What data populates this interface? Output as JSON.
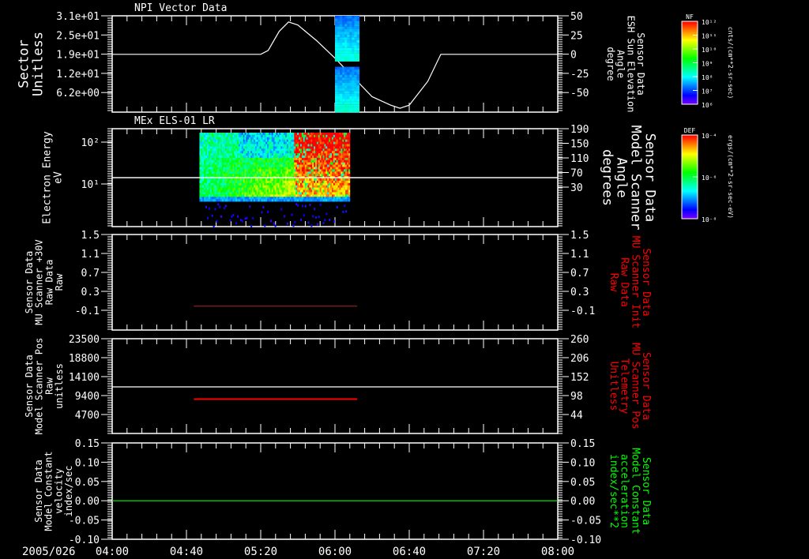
{
  "date_label": "2005/026",
  "time_axis": {
    "start": "04:00",
    "end": "08:00",
    "labels": [
      "04:00",
      "04:40",
      "05:20",
      "06:00",
      "06:40",
      "07:20",
      "08:00"
    ]
  },
  "colors": {
    "axis": "#ffffff",
    "red": "#ff0000",
    "dark_red": "#8b2020",
    "green": "#00ff00",
    "background": "#000000"
  },
  "colorbars": [
    {
      "title": "NF",
      "tick_labels": [
        "10¹²",
        "10¹¹",
        "10¹⁰",
        "10⁹",
        "10⁸",
        "10⁷",
        "10⁶"
      ],
      "units": "cnts/(cm**2-sr-sec)"
    },
    {
      "title": "DEF",
      "tick_labels": [
        "10⁻⁴",
        "10⁻⁶",
        "10⁻⁸"
      ],
      "units": "ergs/(cm**2-sr-sec-eV)"
    }
  ],
  "chart_data": [
    {
      "type": "line",
      "title": "NPI Vector Data",
      "left_axis": {
        "label": [
          "Sector",
          "Unitless"
        ],
        "ticks": [
          "3.1e+01",
          "2.5e+01",
          "1.9e+01",
          "1.2e+01",
          "6.2e+00"
        ],
        "ylim": [
          0,
          31
        ]
      },
      "right_axis": {
        "label": [
          "Sensor Data",
          "ESH Sun Elevation",
          "Angle",
          "degree"
        ],
        "ticks": [
          "50",
          "25",
          "0",
          "-25",
          "-50"
        ],
        "ylim": [
          -75,
          50
        ]
      },
      "series": [
        {
          "name": "Sun Elevation Angle",
          "axis": "right",
          "x_minutes": [
            0,
            80,
            84,
            90,
            95,
            100,
            110,
            120,
            130,
            140,
            150,
            155,
            160,
            170,
            177,
            240
          ],
          "y": [
            0,
            0,
            5,
            30,
            42,
            38,
            18,
            -5,
            -30,
            -55,
            -66,
            -70,
            -66,
            -35,
            0,
            0
          ]
        }
      ],
      "spectrogram_strip": {
        "time_range": [
          "06:00",
          "06:13"
        ],
        "colorbar": "NF"
      }
    },
    {
      "type": "heatmap",
      "title": "MEx ELS-01 LR",
      "left_axis": {
        "label": [
          "Electron Energy",
          "eV"
        ],
        "ticks": [
          "10²",
          "10¹"
        ],
        "scale": "log",
        "ylim": [
          1,
          200
        ]
      },
      "right_axis": {
        "label": [
          "Sensor Data",
          "Model Scanner",
          "Angle",
          "degrees"
        ],
        "ticks": [
          "190",
          "150",
          "110",
          "70",
          "30"
        ],
        "ylim": [
          -10,
          190
        ]
      },
      "series": [
        {
          "name": "Scanner Angle",
          "axis": "right",
          "x_minutes": [
            0,
            240
          ],
          "y": [
            95,
            95
          ]
        }
      ],
      "spectrogram": {
        "time_range": [
          "04:47",
          "06:08"
        ],
        "colorbar": "DEF"
      }
    },
    {
      "type": "line",
      "left_axis": {
        "label": [
          "Sensor Data",
          "MU Scanner +30V",
          "Raw Data",
          "Raw"
        ],
        "ticks": [
          "1.5",
          "1.1",
          "0.7",
          "0.3",
          "-0.1"
        ],
        "ylim": [
          -0.5,
          1.5
        ]
      },
      "right_axis": {
        "label": [
          "Sensor Data",
          "MU Scanner Init",
          "Raw Data",
          "Raw"
        ],
        "ticks": [
          "1.5",
          "1.1",
          "0.7",
          "0.3",
          "-0.1"
        ],
        "ylim": [
          -0.5,
          1.5
        ],
        "color": "#ff0000"
      },
      "series": [
        {
          "name": "Scanner +30V",
          "axis": "left",
          "x_minutes": [
            44,
            132
          ],
          "y": [
            0,
            0
          ]
        }
      ]
    },
    {
      "type": "line",
      "left_axis": {
        "label": [
          "Sensor Data",
          "Model Scanner Pos",
          "Raw",
          "unitless"
        ],
        "ticks": [
          "23500",
          "18800",
          "14100",
          "9400",
          "4700"
        ],
        "ylim": [
          0,
          23500
        ]
      },
      "right_axis": {
        "label": [
          "Sensor Data",
          "MU Scanner Pos",
          "Telemetry",
          "Unitless"
        ],
        "ticks": [
          "260",
          "206",
          "152",
          "98",
          "44"
        ],
        "ylim": [
          -10,
          260
        ],
        "color": "#ff0000"
      },
      "series": [
        {
          "name": "Model Scanner Pos",
          "axis": "left",
          "x_minutes": [
            0,
            240
          ],
          "y": [
            11560,
            11560
          ],
          "color": "#ffffff"
        },
        {
          "name": "MU Scanner Pos",
          "axis": "right",
          "x_minutes": [
            44,
            132
          ],
          "y": [
            88,
            88
          ],
          "color": "#ff0000"
        }
      ]
    },
    {
      "type": "line",
      "left_axis": {
        "label": [
          "Sensor Data",
          "Model Constant",
          "velocity",
          "index/sec"
        ],
        "ticks": [
          "0.15",
          "0.10",
          "0.05",
          "0.00",
          "-0.05",
          "-0.10"
        ],
        "ylim": [
          -0.1,
          0.15
        ]
      },
      "right_axis": {
        "label": [
          "Sensor Data",
          "Model Constant",
          "acceleration",
          "index/sec**2"
        ],
        "ticks": [
          "0.15",
          "0.10",
          "0.05",
          "0.00",
          "-0.05",
          "-0.10"
        ],
        "ylim": [
          -0.1,
          0.15
        ],
        "color": "#00ff00"
      },
      "series": [
        {
          "name": "velocity",
          "axis": "left",
          "x_minutes": [
            0,
            240
          ],
          "y": [
            0,
            0
          ],
          "color": "#00ff00"
        }
      ]
    }
  ]
}
